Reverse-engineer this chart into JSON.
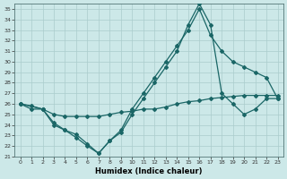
{
  "title": "",
  "xlabel": "Humidex (Indice chaleur)",
  "bg_color": "#cce8e8",
  "grid_color": "#aacccc",
  "line_color": "#1a6666",
  "xlim": [
    -0.5,
    23.5
  ],
  "ylim": [
    21,
    35.5
  ],
  "xticks": [
    0,
    1,
    2,
    3,
    4,
    5,
    6,
    7,
    8,
    9,
    10,
    11,
    12,
    13,
    14,
    15,
    16,
    17,
    18,
    19,
    20,
    21,
    22,
    23
  ],
  "yticks": [
    21,
    22,
    23,
    24,
    25,
    26,
    27,
    28,
    29,
    30,
    31,
    32,
    33,
    34,
    35
  ],
  "line1_x": [
    0,
    1,
    2,
    3,
    4,
    5,
    6,
    7,
    8,
    9,
    10,
    11,
    12,
    13,
    14,
    15,
    16,
    17,
    18,
    19,
    20,
    21,
    22,
    23
  ],
  "line1_y": [
    26.0,
    25.8,
    25.5,
    24.2,
    23.5,
    23.1,
    22.2,
    21.3,
    22.5,
    23.3,
    25.0,
    26.5,
    28.0,
    29.5,
    31.0,
    33.5,
    35.5,
    33.5,
    27.0,
    26.0,
    25.0,
    25.5,
    26.5,
    26.5
  ],
  "line2_x": [
    0,
    2,
    3,
    4,
    5,
    6,
    7,
    8,
    9,
    10,
    11,
    12,
    13,
    14,
    15,
    16,
    17,
    18,
    19,
    20,
    21,
    22,
    23
  ],
  "line2_y": [
    26.0,
    25.5,
    24.0,
    23.5,
    22.8,
    22.0,
    21.3,
    22.5,
    23.5,
    25.5,
    27.0,
    28.5,
    30.0,
    31.5,
    33.0,
    35.0,
    32.5,
    31.0,
    30.0,
    29.5,
    29.0,
    28.5,
    26.5
  ],
  "line3_x": [
    0,
    1,
    2,
    3,
    4,
    5,
    6,
    7,
    8,
    9,
    10,
    11,
    12,
    13,
    14,
    15,
    16,
    17,
    18,
    19,
    20,
    21,
    22,
    23
  ],
  "line3_y": [
    26.0,
    25.5,
    25.5,
    25.0,
    24.8,
    24.8,
    24.8,
    24.8,
    25.0,
    25.2,
    25.3,
    25.5,
    25.5,
    25.7,
    26.0,
    26.2,
    26.3,
    26.5,
    26.6,
    26.7,
    26.8,
    26.8,
    26.8,
    26.8
  ],
  "marker": "D",
  "markersize": 2.0,
  "linewidth": 0.9,
  "tick_fontsize": 4.5,
  "xlabel_fontsize": 6.0
}
